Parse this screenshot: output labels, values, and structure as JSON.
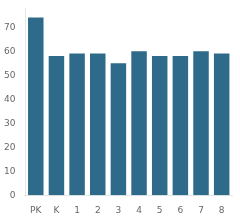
{
  "chart_data": {
    "type": "bar",
    "categories": [
      "PK",
      "K",
      "1",
      "2",
      "3",
      "4",
      "5",
      "6",
      "7",
      "8"
    ],
    "values": [
      74,
      58,
      59,
      59,
      55,
      60,
      58,
      58,
      60,
      59
    ],
    "color": "#2e6a8a",
    "ylim": [
      0,
      78
    ],
    "yticks": [
      0,
      10,
      20,
      30,
      40,
      50,
      60,
      70
    ],
    "grid": false
  }
}
